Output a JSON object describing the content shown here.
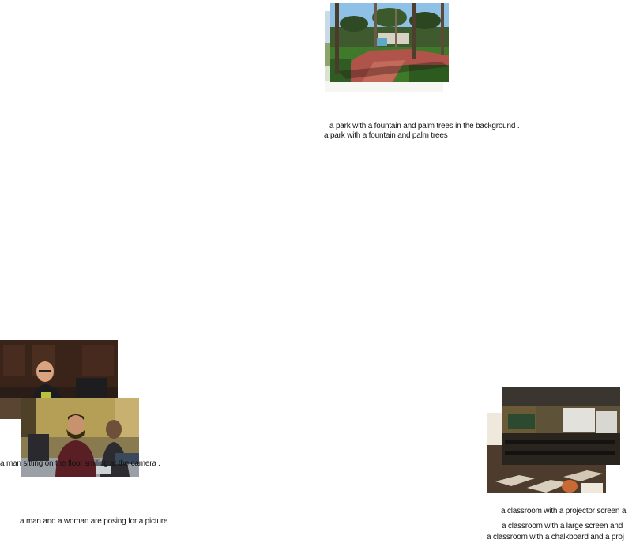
{
  "clusters": {
    "park": {
      "captions": [
        "a park with a fountain and palm trees in the background .",
        "a park with a fountain and palm trees"
      ]
    },
    "people": {
      "captions": [
        "a man sitting on the floor smiling at the camera .",
        "a man and a woman are posing for a picture ."
      ]
    },
    "classroom": {
      "captions": [
        "a classroom with a projector screen a",
        "a classroom with a large screen and",
        "a classroom with a chalkboard and a proj"
      ]
    }
  }
}
